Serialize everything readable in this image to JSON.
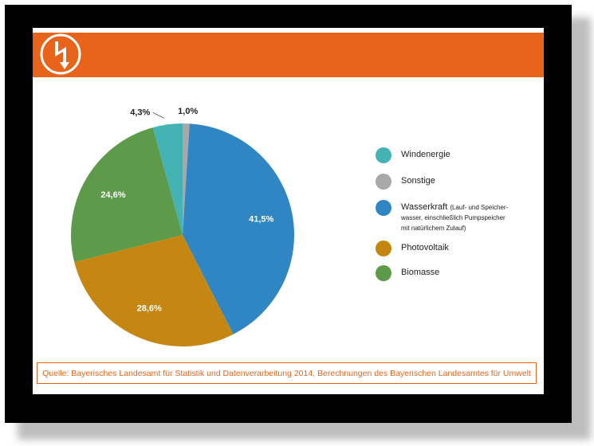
{
  "colors": {
    "accent": "#e8641b",
    "windenergie": "#43b3b4",
    "sonstige": "#a8a8a8",
    "wasserkraft": "#2f86c3",
    "photovoltaik": "#c58612",
    "biomasse": "#5d9a49"
  },
  "chart_data": {
    "type": "pie",
    "title": "",
    "slices": [
      {
        "name": "Sonstige",
        "value": 1.0,
        "label": "1,0%",
        "color": "#a8a8a8"
      },
      {
        "name": "Wasserkraft",
        "value": 41.5,
        "label": "41,5%",
        "color": "#2f86c3"
      },
      {
        "name": "Photovoltaik",
        "value": 28.6,
        "label": "28,6%",
        "color": "#c58612"
      },
      {
        "name": "Biomasse",
        "value": 24.6,
        "label": "24,6%",
        "color": "#5d9a49"
      },
      {
        "name": "Windenergie",
        "value": 4.3,
        "label": "4,3%",
        "color": "#43b3b4"
      }
    ],
    "legend_placement": "right"
  },
  "legend": {
    "windenergie": "Windenergie",
    "sonstige": "Sonstige",
    "wasserkraft": "Wasserkraft",
    "wasserkraft_note_1": "(Lauf- und Speicher-",
    "wasserkraft_note_2": "wasser, einschließlich Pumpspeicher",
    "wasserkraft_note_3": "mit natürlichem Zulauf)",
    "photovoltaik": "Photovoltaik",
    "biomasse": "Biomasse"
  },
  "source": "Quelle: Bayerisches Landesamt für Statistik und Datenverarbeitung 2014, Berechnungen des Bayerischen Landesamtes für Umwelt",
  "icons": {
    "logo": "lightning-bolt-icon"
  }
}
